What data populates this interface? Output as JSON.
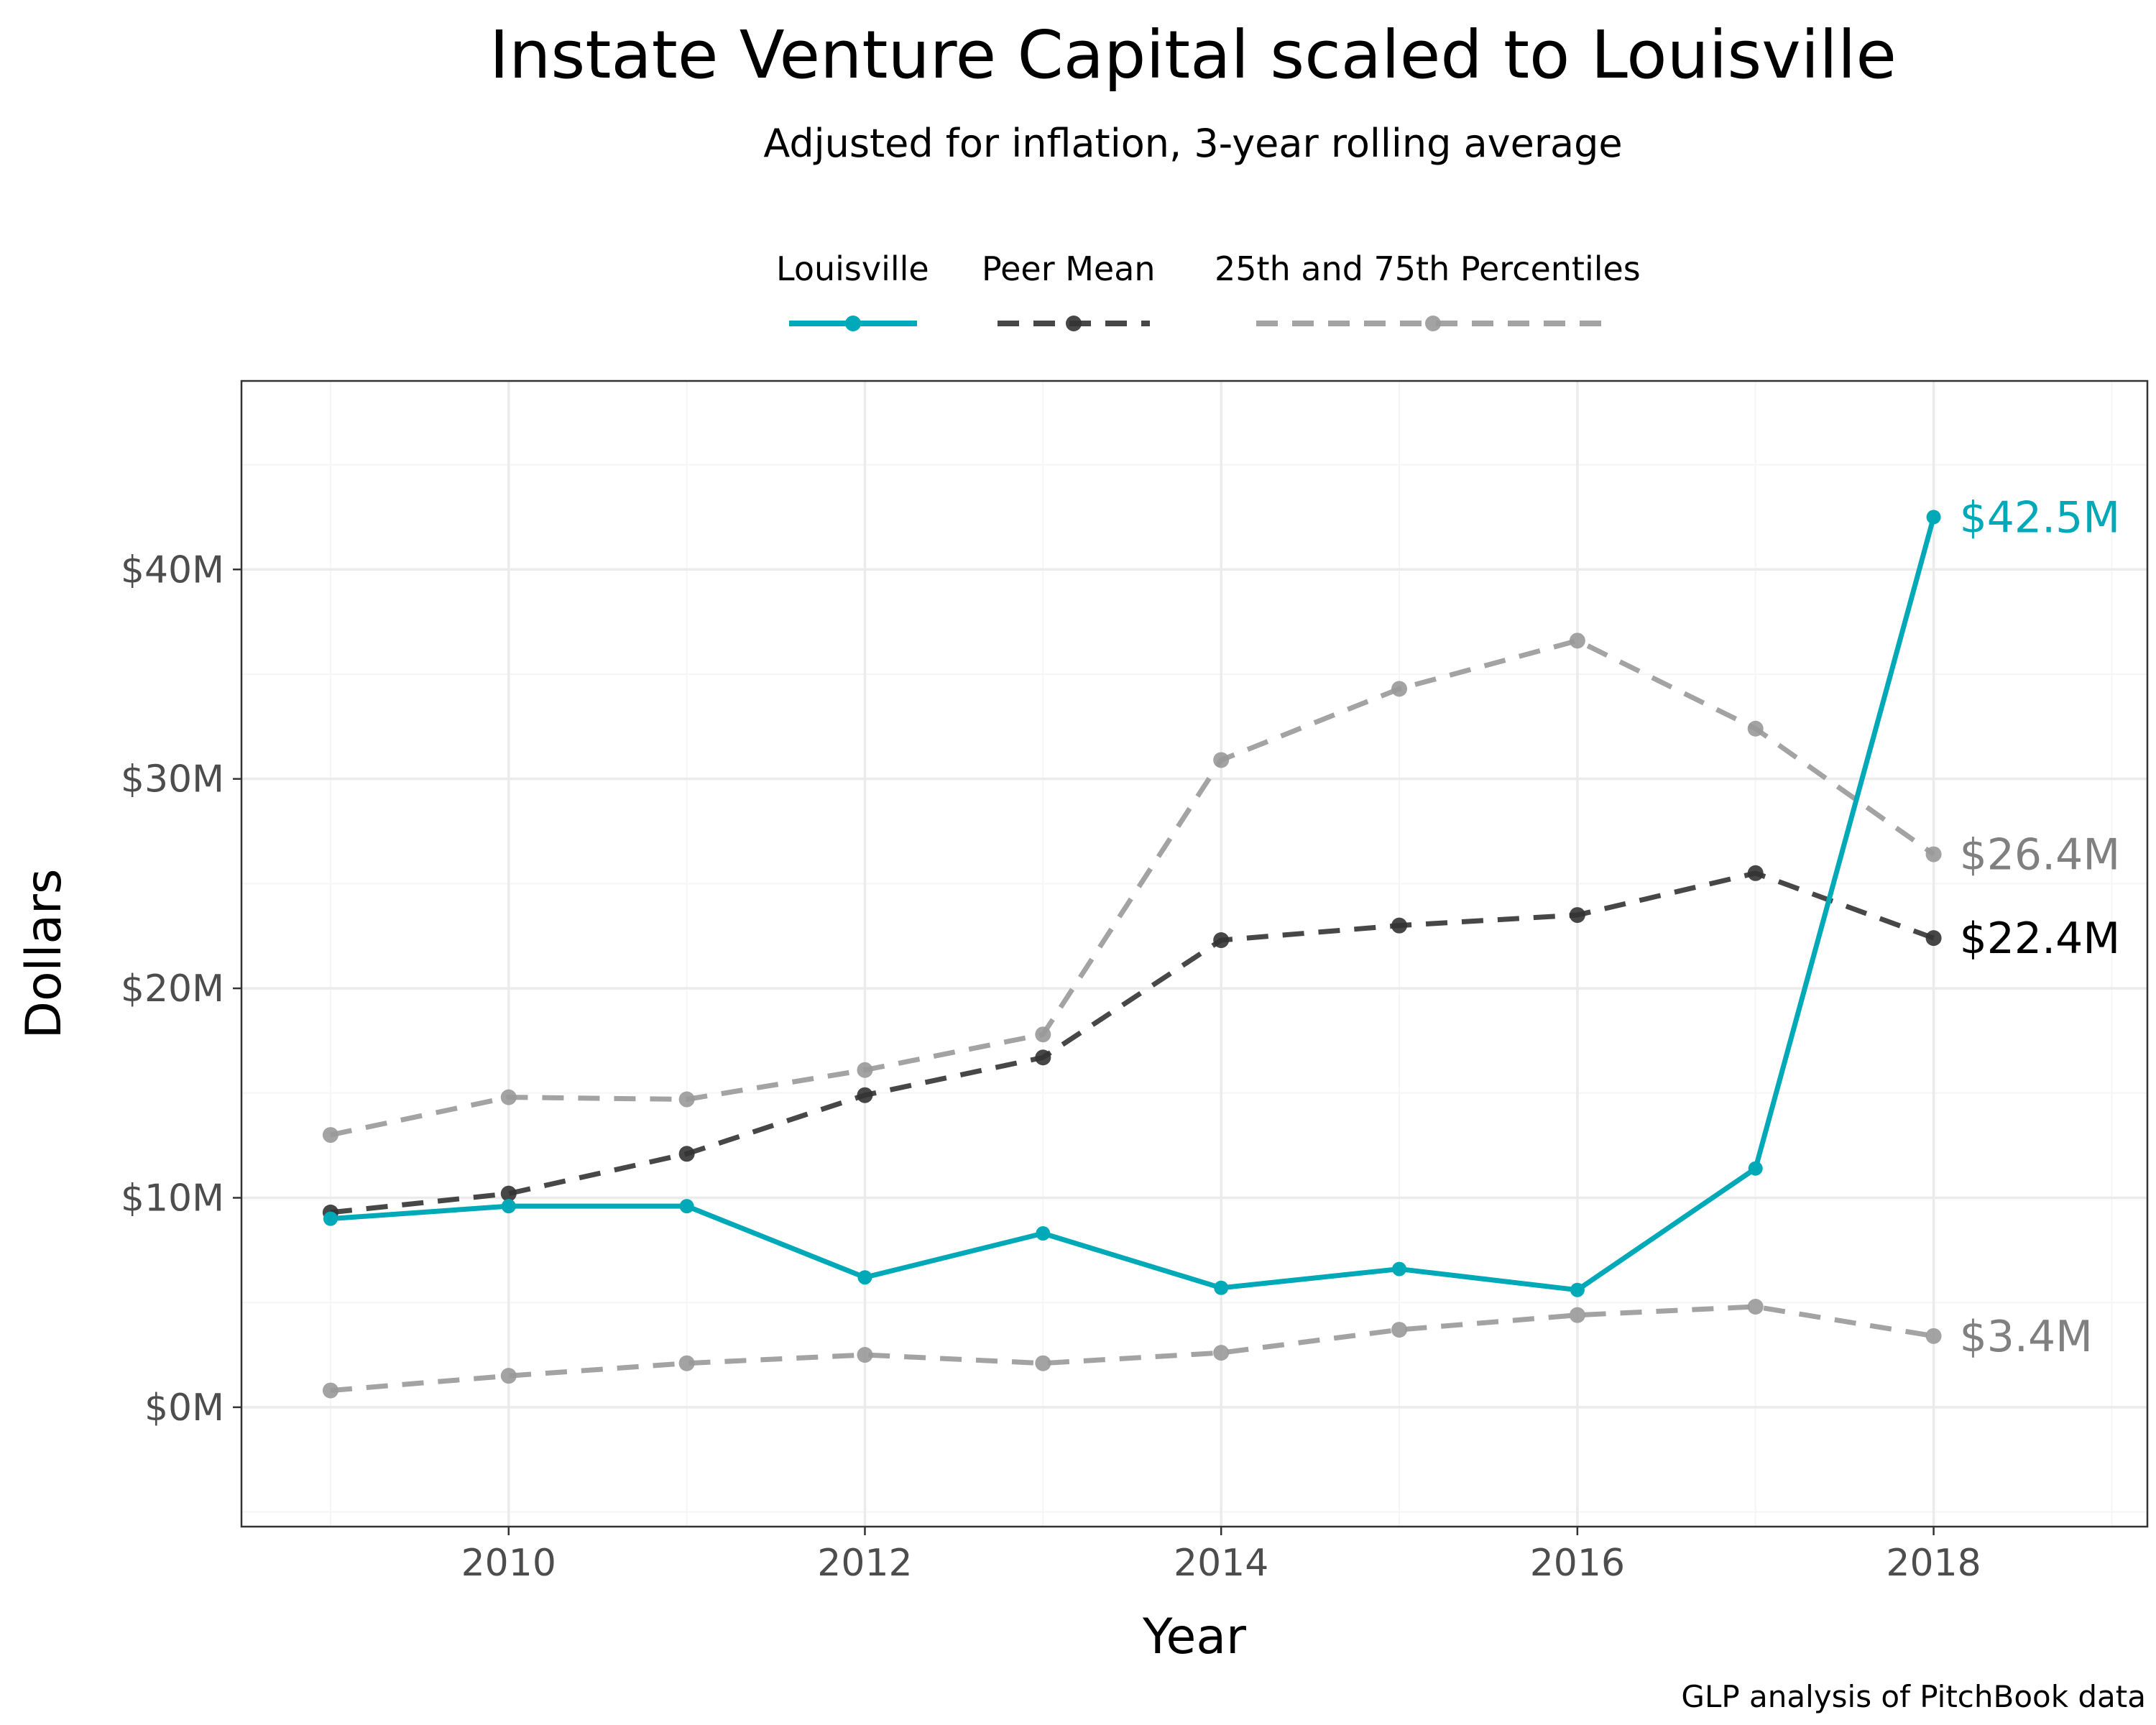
{
  "colors": {
    "louisville": "#00a9b7",
    "peer_mean": "#333333",
    "percentiles": "#999999",
    "grid_major": "#ebebeb",
    "grid_minor": "#f5f5f5",
    "tick_text": "#4d4d4d"
  },
  "legend": {
    "items": [
      {
        "label": "Louisville",
        "color": "#00a9b7",
        "dash": "solid"
      },
      {
        "label": "Peer Mean",
        "color": "#333333",
        "dash": "dashed"
      },
      {
        "label": "25th and 75th Percentiles",
        "color": "#999999",
        "dash": "dashed"
      }
    ]
  },
  "caption": "GLP analysis of PitchBook data",
  "chart_data": {
    "type": "line",
    "title": "Instate Venture Capital scaled to Louisville",
    "subtitle": "Adjusted for inflation, 3-year rolling average",
    "xlabel": "Year",
    "ylabel": "Dollars",
    "xlim": [
      2008.5,
      2019.2
    ],
    "ylim": [
      -5.7,
      49
    ],
    "x_ticks": [
      2010,
      2012,
      2014,
      2016,
      2018
    ],
    "x_tick_labels": [
      "2010",
      "2012",
      "2014",
      "2016",
      "2018"
    ],
    "y_ticks": [
      0,
      10,
      20,
      30,
      40
    ],
    "y_tick_labels": [
      "$0M",
      "$10M",
      "$20M",
      "$30M",
      "$40M"
    ],
    "grid": true,
    "legend_position": "top",
    "x": [
      2009,
      2010,
      2011,
      2012,
      2013,
      2014,
      2015,
      2016,
      2017,
      2018
    ],
    "series": [
      {
        "name": "Louisville",
        "role": "louisville",
        "values": [
          9.0,
          9.6,
          9.6,
          6.2,
          8.3,
          5.7,
          6.6,
          5.6,
          11.4,
          42.5
        ],
        "end_label": "$42.5M"
      },
      {
        "name": "Peer Mean",
        "role": "peer_mean",
        "values": [
          9.3,
          10.2,
          12.1,
          14.9,
          16.7,
          22.3,
          23.0,
          23.5,
          25.5,
          22.4
        ],
        "end_label": "$22.4M"
      },
      {
        "name": "75th Percentile",
        "role": "percentile",
        "values": [
          13.0,
          14.8,
          14.7,
          16.1,
          17.8,
          30.9,
          34.3,
          36.6,
          32.4,
          26.4
        ],
        "end_label": "$26.4M"
      },
      {
        "name": "25th Percentile",
        "role": "percentile",
        "values": [
          0.8,
          1.5,
          2.1,
          2.5,
          2.1,
          2.6,
          3.7,
          4.4,
          4.8,
          3.4
        ],
        "end_label": "$3.4M"
      }
    ]
  }
}
